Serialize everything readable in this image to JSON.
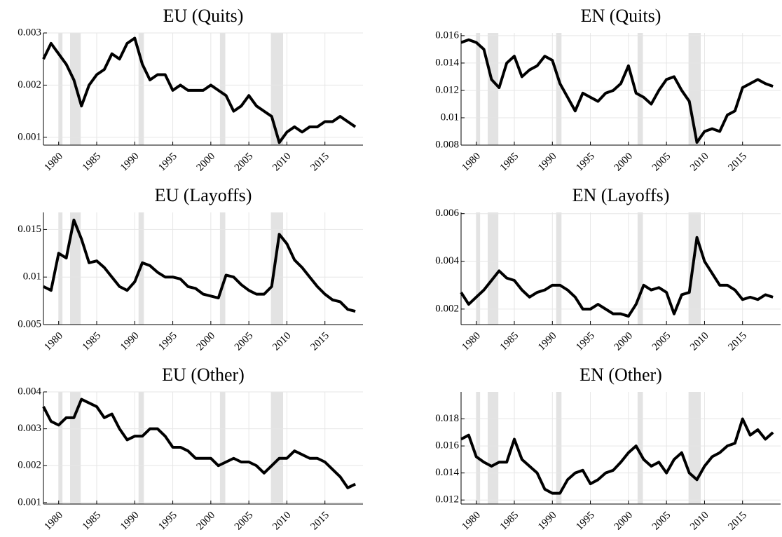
{
  "chart_data": [
    {
      "type": "line",
      "title": "EU (Quits)",
      "x": [
        1978,
        1979,
        1980,
        1981,
        1982,
        1983,
        1984,
        1985,
        1986,
        1987,
        1988,
        1989,
        1990,
        1991,
        1992,
        1993,
        1994,
        1995,
        1996,
        1997,
        1998,
        1999,
        2000,
        2001,
        2002,
        2003,
        2004,
        2005,
        2006,
        2007,
        2008,
        2009,
        2010,
        2011,
        2012,
        2013,
        2014,
        2015,
        2016,
        2017,
        2018,
        2019
      ],
      "series": [
        {
          "color": "#000000",
          "values": [
            0.0025,
            0.0028,
            0.0026,
            0.0024,
            0.0021,
            0.0016,
            0.002,
            0.0022,
            0.0023,
            0.0026,
            0.0025,
            0.0028,
            0.0029,
            0.0024,
            0.0021,
            0.0022,
            0.0022,
            0.0019,
            0.002,
            0.0019,
            0.0019,
            0.0019,
            0.002,
            0.0019,
            0.0018,
            0.0015,
            0.0016,
            0.0018,
            0.0016,
            0.0015,
            0.0014,
            0.0009,
            0.0011,
            0.0012,
            0.0011,
            0.0012,
            0.0012,
            0.0013,
            0.0013,
            0.0014,
            0.0013,
            0.0012
          ]
        }
      ],
      "xlim": [
        1978,
        2020
      ],
      "ylim": [
        0.00085,
        0.003
      ],
      "xticks": [
        1980,
        1985,
        1990,
        1995,
        2000,
        2005,
        2010,
        2015
      ],
      "yticks": [
        0.001,
        0.002,
        0.003
      ],
      "grid": true,
      "shaded": [
        [
          1980,
          1980.5
        ],
        [
          1981.5,
          1982.9
        ],
        [
          1990.5,
          1991.2
        ],
        [
          2001.2,
          2001.9
        ],
        [
          2007.9,
          2009.5
        ]
      ]
    },
    {
      "type": "line",
      "title": "EN (Quits)",
      "x": [
        1978,
        1979,
        1980,
        1981,
        1982,
        1983,
        1984,
        1985,
        1986,
        1987,
        1988,
        1989,
        1990,
        1991,
        1992,
        1993,
        1994,
        1995,
        1996,
        1997,
        1998,
        1999,
        2000,
        2001,
        2002,
        2003,
        2004,
        2005,
        2006,
        2007,
        2008,
        2009,
        2010,
        2011,
        2012,
        2013,
        2014,
        2015,
        2016,
        2017,
        2018,
        2019
      ],
      "series": [
        {
          "color": "#000000",
          "values": [
            0.0155,
            0.0157,
            0.0155,
            0.015,
            0.0128,
            0.0122,
            0.014,
            0.0145,
            0.013,
            0.0135,
            0.0138,
            0.0145,
            0.0142,
            0.0125,
            0.0115,
            0.0105,
            0.0118,
            0.0115,
            0.0112,
            0.0118,
            0.012,
            0.0125,
            0.0138,
            0.0118,
            0.0115,
            0.011,
            0.012,
            0.0128,
            0.013,
            0.012,
            0.0112,
            0.0082,
            0.009,
            0.0092,
            0.009,
            0.0102,
            0.0105,
            0.0122,
            0.0125,
            0.0128,
            0.0125,
            0.0123
          ]
        }
      ],
      "xlim": [
        1978,
        2020
      ],
      "ylim": [
        0.008,
        0.0162
      ],
      "xticks": [
        1980,
        1985,
        1990,
        1995,
        2000,
        2005,
        2010,
        2015
      ],
      "yticks": [
        0.008,
        0.01,
        0.012,
        0.014,
        0.016
      ],
      "grid": true,
      "shaded": [
        [
          1980,
          1980.5
        ],
        [
          1981.5,
          1982.9
        ],
        [
          1990.5,
          1991.2
        ],
        [
          2001.2,
          2001.9
        ],
        [
          2007.9,
          2009.5
        ]
      ]
    },
    {
      "type": "line",
      "title": "EU (Layoffs)",
      "x": [
        1978,
        1979,
        1980,
        1981,
        1982,
        1983,
        1984,
        1985,
        1986,
        1987,
        1988,
        1989,
        1990,
        1991,
        1992,
        1993,
        1994,
        1995,
        1996,
        1997,
        1998,
        1999,
        2000,
        2001,
        2002,
        2003,
        2004,
        2005,
        2006,
        2007,
        2008,
        2009,
        2010,
        2011,
        2012,
        2013,
        2014,
        2015,
        2016,
        2017,
        2018,
        2019
      ],
      "series": [
        {
          "color": "#000000",
          "values": [
            0.009,
            0.0086,
            0.0125,
            0.012,
            0.016,
            0.014,
            0.0115,
            0.0117,
            0.011,
            0.01,
            0.009,
            0.0086,
            0.0095,
            0.0115,
            0.0112,
            0.0105,
            0.01,
            0.01,
            0.0098,
            0.009,
            0.0088,
            0.0082,
            0.008,
            0.0078,
            0.0102,
            0.01,
            0.0092,
            0.0086,
            0.0082,
            0.0082,
            0.009,
            0.0145,
            0.0135,
            0.0118,
            0.011,
            0.01,
            0.009,
            0.0082,
            0.0076,
            0.0074,
            0.0066,
            0.0064
          ]
        }
      ],
      "xlim": [
        1978,
        2020
      ],
      "ylim": [
        0.005,
        0.0168
      ],
      "xticks": [
        1980,
        1985,
        1990,
        1995,
        2000,
        2005,
        2010,
        2015
      ],
      "yticks": [
        0.005,
        0.01,
        0.015
      ],
      "grid": true,
      "shaded": [
        [
          1980,
          1980.5
        ],
        [
          1981.5,
          1982.9
        ],
        [
          1990.5,
          1991.2
        ],
        [
          2001.2,
          2001.9
        ],
        [
          2007.9,
          2009.5
        ]
      ]
    },
    {
      "type": "line",
      "title": "EN (Layoffs)",
      "x": [
        1978,
        1979,
        1980,
        1981,
        1982,
        1983,
        1984,
        1985,
        1986,
        1987,
        1988,
        1989,
        1990,
        1991,
        1992,
        1993,
        1994,
        1995,
        1996,
        1997,
        1998,
        1999,
        2000,
        2001,
        2002,
        2003,
        2004,
        2005,
        2006,
        2007,
        2008,
        2009,
        2010,
        2011,
        2012,
        2013,
        2014,
        2015,
        2016,
        2017,
        2018,
        2019
      ],
      "series": [
        {
          "color": "#000000",
          "values": [
            0.0027,
            0.0022,
            0.0025,
            0.0028,
            0.0032,
            0.0036,
            0.0033,
            0.0032,
            0.0028,
            0.0025,
            0.0027,
            0.0028,
            0.003,
            0.003,
            0.0028,
            0.0025,
            0.002,
            0.002,
            0.0022,
            0.002,
            0.0018,
            0.0018,
            0.0017,
            0.0022,
            0.003,
            0.0028,
            0.0029,
            0.0027,
            0.0018,
            0.0026,
            0.0027,
            0.005,
            0.004,
            0.0035,
            0.003,
            0.003,
            0.0028,
            0.0024,
            0.0025,
            0.0024,
            0.0026,
            0.0025
          ]
        }
      ],
      "xlim": [
        1978,
        2020
      ],
      "ylim": [
        0.00135,
        0.00605
      ],
      "xticks": [
        1980,
        1985,
        1990,
        1995,
        2000,
        2005,
        2010,
        2015
      ],
      "yticks": [
        0.002,
        0.004,
        0.006
      ],
      "grid": true,
      "shaded": [
        [
          1980,
          1980.5
        ],
        [
          1981.5,
          1982.9
        ],
        [
          1990.5,
          1991.2
        ],
        [
          2001.2,
          2001.9
        ],
        [
          2007.9,
          2009.5
        ]
      ]
    },
    {
      "type": "line",
      "title": "EU (Other)",
      "x": [
        1978,
        1979,
        1980,
        1981,
        1982,
        1983,
        1984,
        1985,
        1986,
        1987,
        1988,
        1989,
        1990,
        1991,
        1992,
        1993,
        1994,
        1995,
        1996,
        1997,
        1998,
        1999,
        2000,
        2001,
        2002,
        2003,
        2004,
        2005,
        2006,
        2007,
        2008,
        2009,
        2010,
        2011,
        2012,
        2013,
        2014,
        2015,
        2016,
        2017,
        2018,
        2019
      ],
      "series": [
        {
          "color": "#000000",
          "values": [
            0.0036,
            0.0032,
            0.0031,
            0.0033,
            0.0033,
            0.0038,
            0.0037,
            0.0036,
            0.0033,
            0.0034,
            0.003,
            0.0027,
            0.0028,
            0.0028,
            0.003,
            0.003,
            0.0028,
            0.0025,
            0.0025,
            0.0024,
            0.0022,
            0.0022,
            0.0022,
            0.002,
            0.0021,
            0.0022,
            0.0021,
            0.0021,
            0.002,
            0.0018,
            0.002,
            0.0022,
            0.0022,
            0.0024,
            0.0023,
            0.0022,
            0.0022,
            0.0021,
            0.0019,
            0.0017,
            0.0014,
            0.0015
          ]
        }
      ],
      "xlim": [
        1978,
        2020
      ],
      "ylim": [
        0.00096,
        0.004
      ],
      "xticks": [
        1980,
        1985,
        1990,
        1995,
        2000,
        2005,
        2010,
        2015
      ],
      "yticks": [
        0.001,
        0.002,
        0.003,
        0.004
      ],
      "grid": true,
      "shaded": [
        [
          1980,
          1980.5
        ],
        [
          1981.5,
          1982.9
        ],
        [
          1990.5,
          1991.2
        ],
        [
          2001.2,
          2001.9
        ],
        [
          2007.9,
          2009.5
        ]
      ]
    },
    {
      "type": "line",
      "title": "EN (Other)",
      "x": [
        1978,
        1979,
        1980,
        1981,
        1982,
        1983,
        1984,
        1985,
        1986,
        1987,
        1988,
        1989,
        1990,
        1991,
        1992,
        1993,
        1994,
        1995,
        1996,
        1997,
        1998,
        1999,
        2000,
        2001,
        2002,
        2003,
        2004,
        2005,
        2006,
        2007,
        2008,
        2009,
        2010,
        2011,
        2012,
        2013,
        2014,
        2015,
        2016,
        2017,
        2018,
        2019
      ],
      "series": [
        {
          "color": "#000000",
          "values": [
            0.0165,
            0.0168,
            0.0152,
            0.0148,
            0.0145,
            0.0148,
            0.0148,
            0.0165,
            0.015,
            0.0145,
            0.014,
            0.0128,
            0.0125,
            0.0125,
            0.0135,
            0.014,
            0.0142,
            0.0132,
            0.0135,
            0.014,
            0.0142,
            0.0148,
            0.0155,
            0.016,
            0.015,
            0.0145,
            0.0148,
            0.014,
            0.015,
            0.0155,
            0.014,
            0.0135,
            0.0145,
            0.0152,
            0.0155,
            0.016,
            0.0162,
            0.018,
            0.0168,
            0.0172,
            0.0165,
            0.017
          ]
        }
      ],
      "xlim": [
        1978,
        2020
      ],
      "ylim": [
        0.0117,
        0.02
      ],
      "xticks": [
        1980,
        1985,
        1990,
        1995,
        2000,
        2005,
        2010,
        2015
      ],
      "yticks": [
        0.012,
        0.014,
        0.016,
        0.018
      ],
      "grid": true,
      "shaded": [
        [
          1980,
          1980.5
        ],
        [
          1981.5,
          1982.9
        ],
        [
          1990.5,
          1991.2
        ],
        [
          2001.2,
          2001.9
        ],
        [
          2007.9,
          2009.5
        ]
      ]
    }
  ]
}
